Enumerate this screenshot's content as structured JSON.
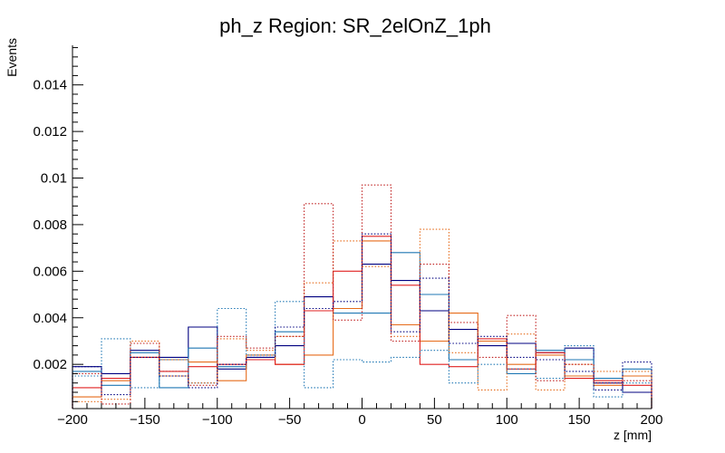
{
  "chart_data": {
    "type": "step-histogram",
    "title": "ph_z Region: SR_2elOnZ_1ph",
    "xlabel": "z [mm]",
    "ylabel": "Events",
    "xlim": [
      -200,
      200
    ],
    "ylim": [
      0.0001,
      0.0157
    ],
    "bin_edges": [
      -200,
      -180,
      -160,
      -140,
      -120,
      -100,
      -80,
      -60,
      -40,
      -20,
      0,
      20,
      40,
      60,
      80,
      100,
      120,
      140,
      160,
      180,
      200
    ],
    "x_ticks": [
      -200,
      -150,
      -100,
      -50,
      0,
      50,
      100,
      150,
      200
    ],
    "x_tick_labels": [
      "−200",
      "−150",
      "−100",
      "−50",
      "0",
      "50",
      "100",
      "150",
      "200"
    ],
    "y_ticks": [
      0.002,
      0.004,
      0.006,
      0.008,
      0.01,
      0.012,
      0.014
    ],
    "y_tick_labels": [
      "0.002",
      "0.004",
      "0.006",
      "0.008",
      "0.01",
      "0.012",
      "0.014"
    ],
    "series": [
      {
        "name": "navy solid",
        "color": "#000080",
        "style": "solid",
        "values": [
          0.0019,
          0.0016,
          0.0026,
          0.0023,
          0.0036,
          0.0018,
          0.0023,
          0.0028,
          0.0049,
          0.0044,
          0.0063,
          0.0056,
          0.0043,
          0.0035,
          0.0028,
          0.0029,
          0.0025,
          0.0027,
          0.0012,
          0.0008
        ]
      },
      {
        "name": "blue solid",
        "color": "#1f77b4",
        "style": "solid",
        "values": [
          0.0017,
          0.0011,
          0.0025,
          0.001,
          0.0027,
          0.0019,
          0.0022,
          0.0034,
          0.0043,
          0.0042,
          0.0042,
          0.0068,
          0.005,
          0.0022,
          0.003,
          0.0016,
          0.0026,
          0.0022,
          0.0014,
          0.0018
        ]
      },
      {
        "name": "orange solid",
        "color": "#e66b1a",
        "style": "solid",
        "values": [
          0.0006,
          0.0013,
          0.0023,
          0.0022,
          0.0021,
          0.0013,
          0.0024,
          0.002,
          0.0024,
          0.0044,
          0.0073,
          0.0037,
          0.003,
          0.0042,
          0.003,
          0.002,
          0.0024,
          0.0015,
          0.0011,
          0.0015
        ]
      },
      {
        "name": "red solid",
        "color": "#e02020",
        "style": "solid",
        "values": [
          0.001,
          0.0014,
          0.0023,
          0.0017,
          0.0019,
          0.002,
          0.0022,
          0.002,
          0.0043,
          0.006,
          0.0075,
          0.0054,
          0.002,
          0.0019,
          0.0031,
          0.0018,
          0.0025,
          0.0014,
          0.0013,
          0.0011
        ]
      },
      {
        "name": "blue dotted",
        "color": "#1f77b4",
        "style": "dotted",
        "values": [
          0.0015,
          0.0031,
          0.001,
          0.0022,
          0.0012,
          0.0044,
          0.0024,
          0.0047,
          0.001,
          0.0022,
          0.0021,
          0.0023,
          0.0026,
          0.0012,
          0.002,
          0.0018,
          0.0014,
          0.0028,
          0.0006,
          0.0012
        ]
      },
      {
        "name": "orange dotted",
        "color": "#e66b1a",
        "style": "dotted",
        "values": [
          0.0004,
          0.0005,
          0.003,
          0.0015,
          0.0012,
          0.0031,
          0.0026,
          0.0032,
          0.0055,
          0.0073,
          0.0062,
          0.0032,
          0.0078,
          0.0025,
          0.0009,
          0.0033,
          0.0009,
          0.002,
          0.0017,
          0.0017
        ]
      },
      {
        "name": "red dotted",
        "color": "#c02020",
        "style": "dotted",
        "values": [
          0.0016,
          0.0003,
          0.0029,
          0.0017,
          0.0011,
          0.0032,
          0.0027,
          0.0032,
          0.0089,
          0.0039,
          0.0097,
          0.003,
          0.0063,
          0.0038,
          0.0023,
          0.0041,
          0.0013,
          0.002,
          0.0012,
          0.0013
        ]
      },
      {
        "name": "navy dotted",
        "color": "#000080",
        "style": "dotted",
        "values": [
          0.0019,
          0.0007,
          0.0023,
          0.0015,
          0.001,
          0.002,
          0.0023,
          0.0036,
          0.0044,
          0.0047,
          0.0076,
          0.0034,
          0.0057,
          0.0029,
          0.0032,
          0.0023,
          0.0022,
          0.0017,
          0.0009,
          0.0021
        ]
      }
    ]
  }
}
